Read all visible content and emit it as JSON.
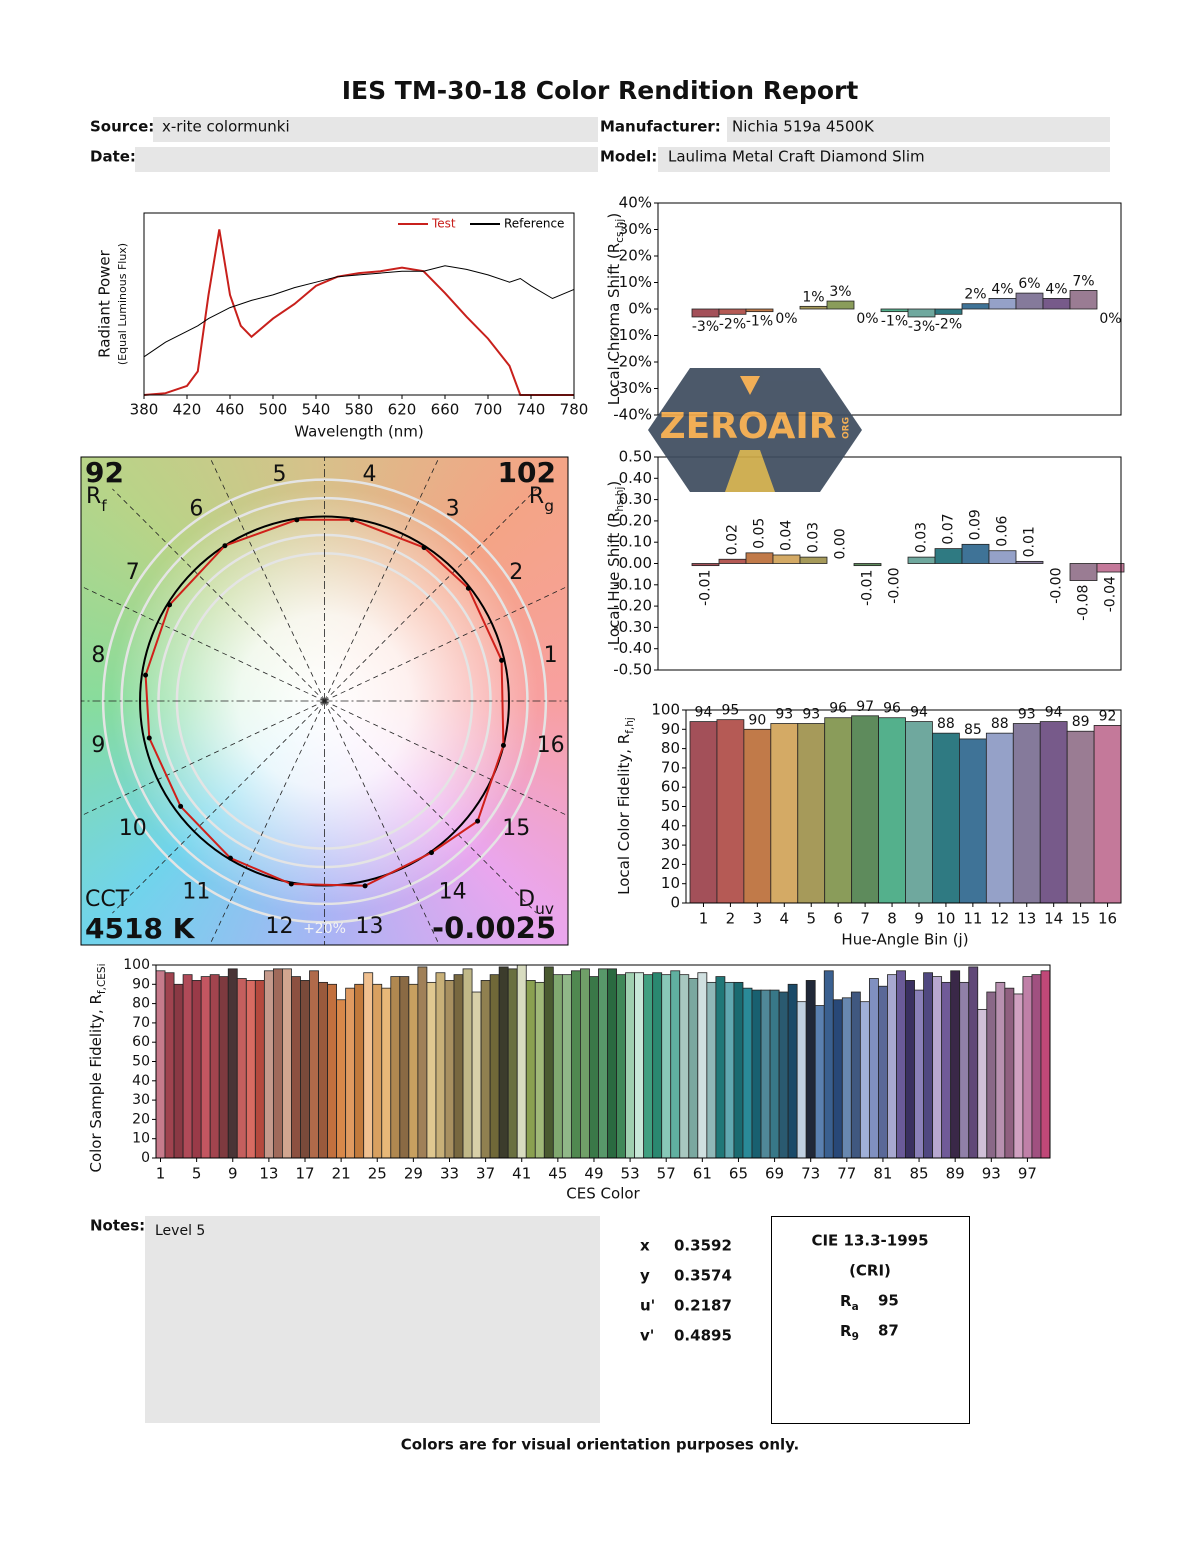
{
  "header": {
    "title": "IES TM-30-18 Color Rendition Report",
    "fields": [
      {
        "label": "Source:",
        "value": "x-rite colormunki"
      },
      {
        "label": "Manufacturer:",
        "value": "Nichia 519a 4500K"
      },
      {
        "label": "Date:"
      },
      {
        "label": "Model:",
        "value": "Laulima Metal Craft Diamond Slim"
      }
    ]
  },
  "chart_data": [
    {
      "type": "line",
      "xlabel": "Wavelength (nm)",
      "ylabel": "Radiant Power",
      "ylabel_note": "(Equal Luminous Flux)",
      "x": [
        380,
        400,
        420,
        430,
        440,
        450,
        460,
        470,
        480,
        500,
        520,
        540,
        560,
        580,
        600,
        620,
        640,
        660,
        680,
        700,
        720,
        730,
        740,
        760,
        780
      ],
      "series": [
        {
          "name": "Test",
          "color": "#c8201c",
          "values": [
            0,
            0.01,
            0.05,
            0.13,
            0.55,
            0.91,
            0.55,
            0.38,
            0.32,
            0.42,
            0.5,
            0.6,
            0.65,
            0.67,
            0.68,
            0.7,
            0.68,
            0.56,
            0.43,
            0.31,
            0.16,
            0,
            0,
            0,
            0
          ]
        },
        {
          "name": "Reference",
          "color": "#000000",
          "values": [
            0.21,
            0.29,
            0.35,
            0.38,
            0.42,
            0.45,
            0.48,
            0.5,
            0.52,
            0.55,
            0.59,
            0.62,
            0.65,
            0.66,
            0.67,
            0.68,
            0.68,
            0.71,
            0.69,
            0.66,
            0.62,
            0.64,
            0.6,
            0.53,
            0.58
          ]
        }
      ],
      "xlim": [
        380,
        780
      ],
      "xticks": [
        380,
        420,
        460,
        500,
        540,
        580,
        620,
        660,
        700,
        740,
        780
      ],
      "ylim": [
        0,
        1
      ],
      "legend": "upper right"
    },
    {
      "type": "vector",
      "hue_bins": [
        "1",
        "2",
        "3",
        "4",
        "5",
        "6",
        "7",
        "8",
        "9",
        "10",
        "11",
        "12",
        "13",
        "14",
        "15",
        "16"
      ],
      "x": [
        0.96,
        0.78,
        0.54,
        0.15,
        -0.15,
        -0.54,
        -0.84,
        -0.97,
        -0.95,
        -0.78,
        -0.51,
        -0.18,
        0.22,
        0.58,
        0.83,
        0.97
      ],
      "values": [
        0.22,
        0.61,
        0.83,
        0.98,
        0.98,
        0.84,
        0.52,
        0.14,
        -0.2,
        -0.57,
        -0.85,
        -0.99,
        -1.0,
        -0.82,
        -0.65,
        -0.24
      ],
      "color": "#d0201a",
      "xlim": [
        -1.32,
        1.32
      ],
      "ylim": [
        -1.32,
        1.32
      ],
      "rings": [
        0.8,
        0.9,
        1.1,
        1.2
      ],
      "ring_label": "+20%",
      "reference_radius": 1,
      "reference_color": "#000000",
      "rf": 92,
      "rf_label": [
        "R",
        "f"
      ],
      "rg": 102,
      "rg_label": [
        "R",
        "g"
      ],
      "cct_label": "CCT",
      "cct": "4518 K",
      "duv_label": [
        "D",
        "uv"
      ],
      "duv": -0.0025
    },
    {
      "type": "bar",
      "ylabel": [
        "Local Chroma Shift (R",
        "cs,hj",
        ")"
      ],
      "values": [
        -3,
        -2,
        -1,
        0,
        1,
        3,
        0,
        -1,
        -3,
        -2,
        2,
        4,
        6,
        4,
        7,
        0
      ],
      "value_labels": [
        "-3%",
        "-2%",
        "-1%",
        "0%",
        "1%",
        "3%",
        "0%",
        "-1%",
        "-3%",
        "-2%",
        "2%",
        "4%",
        "6%",
        "4%",
        "7%",
        "0%"
      ],
      "colors": [
        "#a35059",
        "#b55a55",
        "#c17a49",
        "#d4aa65",
        "#a69a5a",
        "#8a9c5a",
        "#5e8b5c",
        "#54b08c",
        "#6fa89e",
        "#2f7a82",
        "#3f7397",
        "#95a1c8",
        "#857a9b",
        "#775a8a",
        "#9a7c93",
        "#c4799a"
      ],
      "ylim": [
        -40,
        40
      ],
      "yticks": [
        {
          "value": -40,
          "label": "-40%"
        },
        {
          "value": -30,
          "label": "-30%"
        },
        {
          "value": -20,
          "label": "-20%"
        },
        {
          "value": -10,
          "label": "-10%"
        },
        {
          "value": 0,
          "label": "0%"
        },
        {
          "value": 10,
          "label": "10%"
        },
        {
          "value": 20,
          "label": "20%"
        },
        {
          "value": 30,
          "label": "30%"
        },
        {
          "value": 40,
          "label": "40%"
        }
      ]
    },
    {
      "type": "bar",
      "ylabel": [
        "Local Hue Shift (R",
        "hs,hj",
        ")"
      ],
      "values": [
        -0.01,
        0.02,
        0.05,
        0.04,
        0.03,
        0.0,
        -0.01,
        0,
        0.03,
        0.07,
        0.09,
        0.06,
        0.01,
        0,
        -0.08,
        -0.04
      ],
      "value_labels": [
        "-0.01",
        "0.02",
        "0.05",
        "0.04",
        "0.03",
        "0.00",
        "-0.01",
        "-0.00",
        "0.03",
        "0.07",
        "0.09",
        "0.06",
        "0.01",
        "-0.00",
        "-0.08",
        "-0.04"
      ],
      "colors": [
        "#a35059",
        "#b55a55",
        "#c17a49",
        "#d4aa65",
        "#a69a5a",
        "#8a9c5a",
        "#5e8b5c",
        "#54b08c",
        "#6fa89e",
        "#2f7a82",
        "#3f7397",
        "#95a1c8",
        "#857a9b",
        "#775a8a",
        "#9a7c93",
        "#c4799a"
      ],
      "ylim": [
        -0.5,
        0.5
      ],
      "yticks": [
        {
          "value": -0.5,
          "label": "-0.50"
        },
        {
          "value": -0.4,
          "label": "-0.40"
        },
        {
          "value": -0.3,
          "label": "-0.30"
        },
        {
          "value": -0.2,
          "label": "-0.20"
        },
        {
          "value": -0.1,
          "label": "-0.10"
        },
        {
          "value": 0,
          "label": "0.00"
        },
        {
          "value": 0.1,
          "label": "0.10"
        },
        {
          "value": 0.2,
          "label": "0.20"
        },
        {
          "value": 0.3,
          "label": "0.30"
        },
        {
          "value": 0.4,
          "label": "0.40"
        },
        {
          "value": 0.5,
          "label": "0.50"
        }
      ]
    },
    {
      "type": "bar",
      "ylabel": [
        "Local Color Fidelity, R",
        "f,hj"
      ],
      "xlabel": "Hue-Angle Bin (j)",
      "categories": [
        "1",
        "2",
        "3",
        "4",
        "5",
        "6",
        "7",
        "8",
        "9",
        "10",
        "11",
        "12",
        "13",
        "14",
        "15",
        "16"
      ],
      "values": [
        94,
        95,
        90,
        93,
        93,
        96,
        97,
        96,
        94,
        88,
        85,
        88,
        93,
        94,
        89,
        92
      ],
      "colors": [
        "#a35059",
        "#b55a55",
        "#c17a49",
        "#d4aa65",
        "#a69a5a",
        "#8a9c5a",
        "#5e8b5c",
        "#54b08c",
        "#6fa89e",
        "#2f7a82",
        "#3f7397",
        "#95a1c8",
        "#857a9b",
        "#775a8a",
        "#9a7c93",
        "#c4799a"
      ],
      "ylim": [
        0,
        100
      ],
      "yticks": [
        0,
        10,
        20,
        30,
        40,
        50,
        60,
        70,
        80,
        90,
        100
      ]
    },
    {
      "type": "bar",
      "ylabel": [
        "Color Sample Fidelity, R",
        "f,CESi"
      ],
      "xlabel": "CES Color",
      "categories": [
        "1",
        null,
        null,
        null,
        "5",
        null,
        null,
        null,
        "9",
        null,
        null,
        null,
        "13",
        null,
        null,
        null,
        "17",
        null,
        null,
        null,
        "21",
        null,
        null,
        null,
        "25",
        null,
        null,
        null,
        "29",
        null,
        null,
        null,
        "33",
        null,
        null,
        null,
        "37",
        null,
        null,
        null,
        "41",
        null,
        null,
        null,
        "45",
        null,
        null,
        null,
        "49",
        null,
        null,
        null,
        "53",
        null,
        null,
        null,
        "57",
        null,
        null,
        null,
        "61",
        null,
        null,
        null,
        "65",
        null,
        null,
        null,
        "69",
        null,
        null,
        null,
        "73",
        null,
        null,
        null,
        "77",
        null,
        null,
        null,
        "81",
        null,
        null,
        null,
        "85",
        null,
        null,
        null,
        "89",
        null,
        null,
        null,
        "93",
        null,
        null,
        null,
        "97",
        null,
        null
      ],
      "values": [
        97,
        96,
        90,
        95,
        92,
        94,
        95,
        94,
        98,
        93,
        92,
        92,
        97,
        98,
        98,
        94,
        92,
        97,
        91,
        90,
        82,
        88,
        90,
        96,
        90,
        88,
        94,
        94,
        90,
        99,
        91,
        96,
        92,
        95,
        98,
        86,
        92,
        95,
        99,
        98,
        100,
        92,
        91,
        99,
        95,
        95,
        97,
        98,
        94,
        98,
        98,
        95,
        96,
        96,
        95,
        96,
        95,
        97,
        95,
        93,
        96,
        91,
        94,
        91,
        91,
        88,
        87,
        87,
        87,
        86,
        90,
        81,
        92,
        79,
        97,
        82,
        83,
        86,
        81,
        93,
        89,
        95,
        97,
        92,
        87,
        96,
        94,
        91,
        97,
        91,
        99,
        77,
        86,
        91,
        88,
        85,
        94,
        95,
        97
      ],
      "colors": [
        "#c77b8c",
        "#a0434f",
        "#8a3944",
        "#b04a58",
        "#9a3a48",
        "#c35661",
        "#a2444e",
        "#7e3a3f",
        "#4a3436",
        "#c45f5e",
        "#d86b62",
        "#b5493e",
        "#c59a8c",
        "#a06a5b",
        "#d2a690",
        "#8c5040",
        "#7a4a3a",
        "#b06a4a",
        "#9a5a3c",
        "#c2703e",
        "#d8884a",
        "#e09a60",
        "#c27a3c",
        "#f0c090",
        "#d8a060",
        "#e8b878",
        "#b08850",
        "#8a6a44",
        "#c8a060",
        "#a08058",
        "#e0c890",
        "#c8b078",
        "#a89060",
        "#786840",
        "#c0b888",
        "#d8d0a8",
        "#908050",
        "#706838",
        "#3c3c2c",
        "#6a7040",
        "#d8dcc0",
        "#8aa050",
        "#a0b878",
        "#4a5a30",
        "#80a870",
        "#90b888",
        "#508850",
        "#70a068",
        "#3a7848",
        "#58986a",
        "#2a6a40",
        "#408858",
        "#a0d0b0",
        "#c8e8d8",
        "#40a080",
        "#2a8870",
        "#88c8b8",
        "#60b0a0",
        "#a8c8c0",
        "#7aa8a0",
        "#d0e0e0",
        "#90b8b8",
        "#207878",
        "#60a8b0",
        "#1a6a70",
        "#2a8a98",
        "#186070",
        "#508898",
        "#387888",
        "#2a5a70",
        "#1a4a68",
        "#c0d0e0",
        "#202838",
        "#5a80b0",
        "#3a6090",
        "#284878",
        "#6888b0",
        "#405880",
        "#a0b0d8",
        "#8090c0",
        "#5a6898",
        "#a8a8d0",
        "#6a5a98",
        "#3a3060",
        "#8a80b8",
        "#504880",
        "#b8a8d0",
        "#705a98",
        "#3a2848",
        "#9080a8",
        "#604878",
        "#d0c0d8",
        "#8a6888",
        "#b890b0",
        "#906080",
        "#d0a0c0",
        "#c080a8",
        "#a05080",
        "#c04878"
      ],
      "ylim": [
        0,
        100
      ],
      "yticks": [
        0,
        10,
        20,
        30,
        40,
        50,
        60,
        70,
        80,
        90,
        100
      ]
    }
  ],
  "notes": {
    "label": "Notes:",
    "text": "Level 5"
  },
  "chromaticity": [
    {
      "label": "x",
      "value": 0.3592
    },
    {
      "label": "y",
      "value": 0.3574
    },
    {
      "label": "u'",
      "value": 0.2187
    },
    {
      "label": "v'",
      "value": 0.4895
    }
  ],
  "cri": {
    "title": "CIE 13.3-1995",
    "subtitle": "(CRI)",
    "rows": [
      {
        "label": [
          "R",
          "a"
        ],
        "value": 95
      },
      {
        "label": [
          "R",
          "9"
        ],
        "value": 87
      }
    ]
  },
  "footer": "Colors are for visual orientation purposes only.",
  "watermark": {
    "text": "ZEROAIR",
    "suffix": "ORG"
  }
}
